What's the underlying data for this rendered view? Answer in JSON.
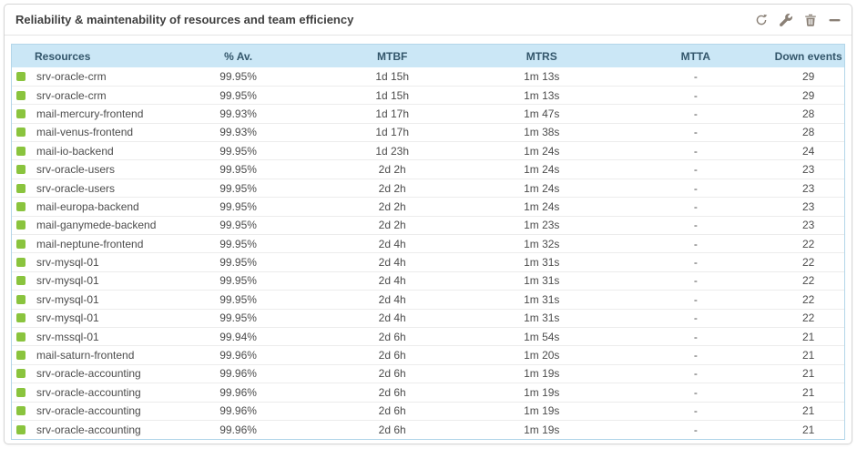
{
  "panel": {
    "title": "Reliability & maintenability of resources and team efficiency"
  },
  "toolbar": {
    "icons": [
      "refresh-icon",
      "wrench-icon",
      "trash-icon",
      "minimize-icon"
    ]
  },
  "colors": {
    "status_up": "#8ac43e",
    "header_bg": "#cbe7f6",
    "header_text": "#33566b",
    "table_border": "#b3d6e9"
  },
  "table": {
    "columns": [
      "Resources",
      "% Av.",
      "MTBF",
      "MTRS",
      "MTTA",
      "Down events"
    ],
    "rows": [
      {
        "status": "up",
        "resource": "srv-oracle-crm",
        "availability": "99.95%",
        "mtbf": "1d 15h",
        "mtrs": "1m 13s",
        "mtta": "-",
        "down_events": "29"
      },
      {
        "status": "up",
        "resource": "srv-oracle-crm",
        "availability": "99.95%",
        "mtbf": "1d 15h",
        "mtrs": "1m 13s",
        "mtta": "-",
        "down_events": "29"
      },
      {
        "status": "up",
        "resource": "mail-mercury-frontend",
        "availability": "99.93%",
        "mtbf": "1d 17h",
        "mtrs": "1m 47s",
        "mtta": "-",
        "down_events": "28"
      },
      {
        "status": "up",
        "resource": "mail-venus-frontend",
        "availability": "99.93%",
        "mtbf": "1d 17h",
        "mtrs": "1m 38s",
        "mtta": "-",
        "down_events": "28"
      },
      {
        "status": "up",
        "resource": "mail-io-backend",
        "availability": "99.95%",
        "mtbf": "1d 23h",
        "mtrs": "1m 24s",
        "mtta": "-",
        "down_events": "24"
      },
      {
        "status": "up",
        "resource": "srv-oracle-users",
        "availability": "99.95%",
        "mtbf": "2d 2h",
        "mtrs": "1m 24s",
        "mtta": "-",
        "down_events": "23"
      },
      {
        "status": "up",
        "resource": "srv-oracle-users",
        "availability": "99.95%",
        "mtbf": "2d 2h",
        "mtrs": "1m 24s",
        "mtta": "-",
        "down_events": "23"
      },
      {
        "status": "up",
        "resource": "mail-europa-backend",
        "availability": "99.95%",
        "mtbf": "2d 2h",
        "mtrs": "1m 24s",
        "mtta": "-",
        "down_events": "23"
      },
      {
        "status": "up",
        "resource": "mail-ganymede-backend",
        "availability": "99.95%",
        "mtbf": "2d 2h",
        "mtrs": "1m 23s",
        "mtta": "-",
        "down_events": "23"
      },
      {
        "status": "up",
        "resource": "mail-neptune-frontend",
        "availability": "99.95%",
        "mtbf": "2d 4h",
        "mtrs": "1m 32s",
        "mtta": "-",
        "down_events": "22"
      },
      {
        "status": "up",
        "resource": "srv-mysql-01",
        "availability": "99.95%",
        "mtbf": "2d 4h",
        "mtrs": "1m 31s",
        "mtta": "-",
        "down_events": "22"
      },
      {
        "status": "up",
        "resource": "srv-mysql-01",
        "availability": "99.95%",
        "mtbf": "2d 4h",
        "mtrs": "1m 31s",
        "mtta": "-",
        "down_events": "22"
      },
      {
        "status": "up",
        "resource": "srv-mysql-01",
        "availability": "99.95%",
        "mtbf": "2d 4h",
        "mtrs": "1m 31s",
        "mtta": "-",
        "down_events": "22"
      },
      {
        "status": "up",
        "resource": "srv-mysql-01",
        "availability": "99.95%",
        "mtbf": "2d 4h",
        "mtrs": "1m 31s",
        "mtta": "-",
        "down_events": "22"
      },
      {
        "status": "up",
        "resource": "srv-mssql-01",
        "availability": "99.94%",
        "mtbf": "2d 6h",
        "mtrs": "1m 54s",
        "mtta": "-",
        "down_events": "21"
      },
      {
        "status": "up",
        "resource": "mail-saturn-frontend",
        "availability": "99.96%",
        "mtbf": "2d 6h",
        "mtrs": "1m 20s",
        "mtta": "-",
        "down_events": "21"
      },
      {
        "status": "up",
        "resource": "srv-oracle-accounting",
        "availability": "99.96%",
        "mtbf": "2d 6h",
        "mtrs": "1m 19s",
        "mtta": "-",
        "down_events": "21"
      },
      {
        "status": "up",
        "resource": "srv-oracle-accounting",
        "availability": "99.96%",
        "mtbf": "2d 6h",
        "mtrs": "1m 19s",
        "mtta": "-",
        "down_events": "21"
      },
      {
        "status": "up",
        "resource": "srv-oracle-accounting",
        "availability": "99.96%",
        "mtbf": "2d 6h",
        "mtrs": "1m 19s",
        "mtta": "-",
        "down_events": "21"
      },
      {
        "status": "up",
        "resource": "srv-oracle-accounting",
        "availability": "99.96%",
        "mtbf": "2d 6h",
        "mtrs": "1m 19s",
        "mtta": "-",
        "down_events": "21"
      }
    ]
  }
}
